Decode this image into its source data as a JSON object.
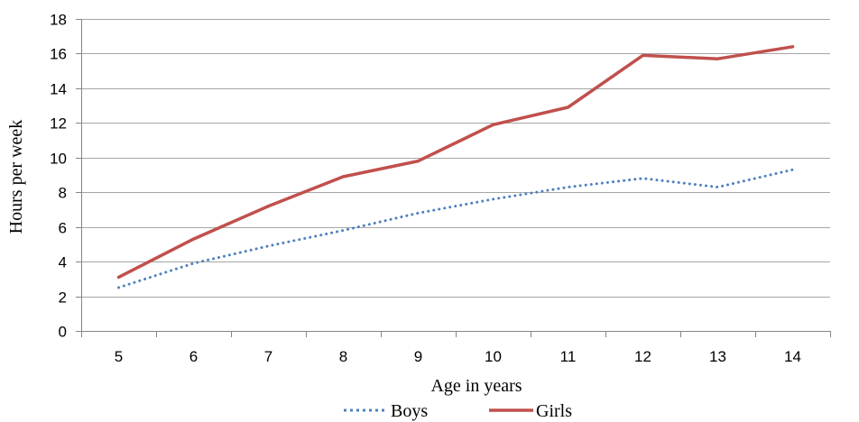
{
  "chart_data": {
    "type": "line",
    "title": "",
    "xlabel": "Age in years",
    "ylabel": "Hours per week",
    "categories": [
      "5",
      "6",
      "7",
      "8",
      "9",
      "10",
      "11",
      "12",
      "13",
      "14"
    ],
    "ylim": [
      0,
      18
    ],
    "yticks": [
      0,
      2,
      4,
      6,
      8,
      10,
      12,
      14,
      16,
      18
    ],
    "grid": true,
    "legend_position": "bottom",
    "series": [
      {
        "name": "Boys",
        "values": [
          2.5,
          3.9,
          4.9,
          5.8,
          6.8,
          7.6,
          8.3,
          8.8,
          8.3,
          9.3
        ],
        "color": "#4f81bd",
        "line_style": "dotted"
      },
      {
        "name": "Girls",
        "values": [
          3.1,
          5.3,
          7.2,
          8.9,
          9.8,
          11.9,
          12.9,
          15.9,
          15.7,
          16.4
        ],
        "color": "#c0504d",
        "line_style": "solid"
      }
    ]
  }
}
